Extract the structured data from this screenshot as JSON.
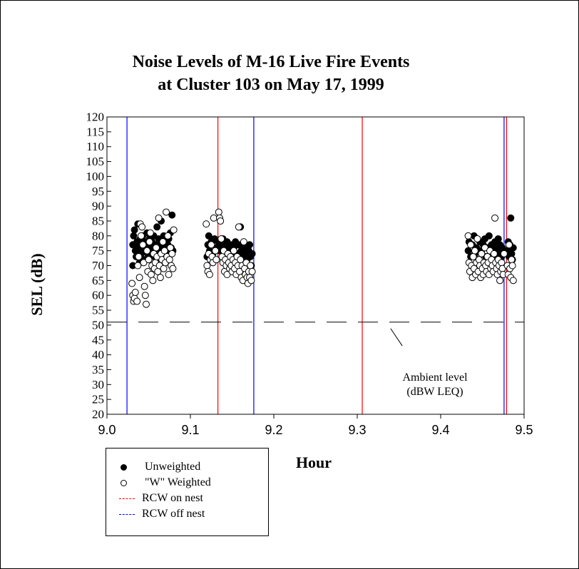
{
  "chart_data": {
    "type": "scatter",
    "title_lines": [
      "Noise Levels of M-16 Live Fire Events",
      "at Cluster 103 on May 17, 1999"
    ],
    "xlabel": "Hour",
    "ylabel": "SEL (dB)",
    "xlim": [
      9.0,
      9.5
    ],
    "ylim": [
      20,
      120
    ],
    "x_ticks": [
      "9.0",
      "9.1",
      "9.2",
      "9.3",
      "9.4",
      "9.5"
    ],
    "y_ticks": [
      "20",
      "25",
      "30",
      "35",
      "40",
      "45",
      "50",
      "55",
      "60",
      "65",
      "70",
      "75",
      "80",
      "85",
      "90",
      "95",
      "100",
      "105",
      "110",
      "115",
      "120"
    ],
    "grid": false,
    "legend_position": "bottom-left",
    "ambient_level": {
      "y": 51,
      "annotation_lines": [
        "Ambient level",
        "(dBW LEQ)"
      ]
    },
    "vertical_lines": [
      {
        "series": "RCW off nest",
        "x": 9.024
      },
      {
        "series": "RCW on nest",
        "x": 9.133
      },
      {
        "series": "RCW off nest",
        "x": 9.176
      },
      {
        "series": "RCW on nest",
        "x": 9.306
      },
      {
        "series": "RCW off nest",
        "x": 9.476
      },
      {
        "series": "RCW on nest",
        "x": 9.479
      }
    ],
    "series": [
      {
        "name": "Unweighted",
        "marker": "filled-circle",
        "points": [
          [
            9.031,
            70
          ],
          [
            9.031,
            77
          ],
          [
            9.032,
            80
          ],
          [
            9.033,
            82
          ],
          [
            9.034,
            75
          ],
          [
            9.035,
            73
          ],
          [
            9.036,
            78
          ],
          [
            9.037,
            84
          ],
          [
            9.038,
            76
          ],
          [
            9.039,
            71
          ],
          [
            9.04,
            79
          ],
          [
            9.041,
            74
          ],
          [
            9.042,
            77
          ],
          [
            9.043,
            80
          ],
          [
            9.044,
            75
          ],
          [
            9.045,
            72
          ],
          [
            9.046,
            78
          ],
          [
            9.047,
            76
          ],
          [
            9.048,
            81
          ],
          [
            9.049,
            74
          ],
          [
            9.05,
            77
          ],
          [
            9.051,
            79
          ],
          [
            9.052,
            73
          ],
          [
            9.053,
            76
          ],
          [
            9.054,
            78
          ],
          [
            9.055,
            75
          ],
          [
            9.056,
            80
          ],
          [
            9.057,
            74
          ],
          [
            9.058,
            77
          ],
          [
            9.059,
            72
          ],
          [
            9.06,
            83
          ],
          [
            9.061,
            76
          ],
          [
            9.062,
            79
          ],
          [
            9.063,
            75
          ],
          [
            9.064,
            78
          ],
          [
            9.065,
            85
          ],
          [
            9.066,
            74
          ],
          [
            9.067,
            77
          ],
          [
            9.068,
            80
          ],
          [
            9.069,
            76
          ],
          [
            9.07,
            73
          ],
          [
            9.071,
            78
          ],
          [
            9.072,
            75
          ],
          [
            9.073,
            77
          ],
          [
            9.074,
            79
          ],
          [
            9.075,
            74
          ],
          [
            9.076,
            81
          ],
          [
            9.077,
            76
          ],
          [
            9.078,
            87
          ],
          [
            9.079,
            75
          ],
          [
            9.12,
            73
          ],
          [
            9.121,
            77
          ],
          [
            9.122,
            80
          ],
          [
            9.123,
            75
          ],
          [
            9.125,
            78
          ],
          [
            9.127,
            74
          ],
          [
            9.129,
            79
          ],
          [
            9.131,
            76
          ],
          [
            9.133,
            78
          ],
          [
            9.135,
            75
          ],
          [
            9.137,
            77
          ],
          [
            9.139,
            79
          ],
          [
            9.14,
            74
          ],
          [
            9.142,
            76
          ],
          [
            9.144,
            78
          ],
          [
            9.146,
            75
          ],
          [
            9.148,
            77
          ],
          [
            9.15,
            73
          ],
          [
            9.152,
            76
          ],
          [
            9.154,
            78
          ],
          [
            9.156,
            74
          ],
          [
            9.158,
            77
          ],
          [
            9.16,
            83
          ],
          [
            9.161,
            75
          ],
          [
            9.162,
            73
          ],
          [
            9.164,
            77
          ],
          [
            9.165,
            76
          ],
          [
            9.167,
            74
          ],
          [
            9.168,
            72
          ],
          [
            9.17,
            75
          ],
          [
            9.171,
            77
          ],
          [
            9.172,
            73
          ],
          [
            9.173,
            70
          ],
          [
            9.174,
            74
          ],
          [
            9.433,
            75
          ],
          [
            9.434,
            78
          ],
          [
            9.436,
            73
          ],
          [
            9.438,
            77
          ],
          [
            9.44,
            80
          ],
          [
            9.441,
            74
          ],
          [
            9.443,
            76
          ],
          [
            9.445,
            72
          ],
          [
            9.447,
            78
          ],
          [
            9.449,
            75
          ],
          [
            9.451,
            77
          ],
          [
            9.453,
            79
          ],
          [
            9.454,
            73
          ],
          [
            9.456,
            76
          ],
          [
            9.458,
            80
          ],
          [
            9.46,
            74
          ],
          [
            9.461,
            77
          ],
          [
            9.463,
            75
          ],
          [
            9.465,
            78
          ],
          [
            9.466,
            72
          ],
          [
            9.468,
            76
          ],
          [
            9.469,
            79
          ],
          [
            9.47,
            74
          ],
          [
            9.471,
            77
          ],
          [
            9.472,
            75
          ],
          [
            9.473,
            73
          ],
          [
            9.474,
            76
          ],
          [
            9.475,
            70
          ],
          [
            9.48,
            75
          ],
          [
            9.481,
            78
          ],
          [
            9.482,
            73
          ],
          [
            9.483,
            77
          ],
          [
            9.484,
            86
          ],
          [
            9.485,
            74
          ],
          [
            9.486,
            72
          ],
          [
            9.487,
            76
          ]
        ]
      },
      {
        "name": "\"W\" Weighted",
        "marker": "open-circle",
        "points": [
          [
            9.03,
            64
          ],
          [
            9.031,
            60
          ],
          [
            9.032,
            58
          ],
          [
            9.033,
            59
          ],
          [
            9.034,
            61
          ],
          [
            9.036,
            58
          ],
          [
            9.037,
            70
          ],
          [
            9.038,
            73
          ],
          [
            9.039,
            66
          ],
          [
            9.04,
            84
          ],
          [
            9.041,
            80
          ],
          [
            9.042,
            83
          ],
          [
            9.043,
            77
          ],
          [
            9.044,
            71
          ],
          [
            9.045,
            63
          ],
          [
            9.046,
            60
          ],
          [
            9.047,
            57
          ],
          [
            9.048,
            75
          ],
          [
            9.049,
            68
          ],
          [
            9.05,
            72
          ],
          [
            9.051,
            78
          ],
          [
            9.052,
            81
          ],
          [
            9.053,
            67
          ],
          [
            9.054,
            70
          ],
          [
            9.055,
            65
          ],
          [
            9.056,
            74
          ],
          [
            9.057,
            69
          ],
          [
            9.058,
            71
          ],
          [
            9.059,
            76
          ],
          [
            9.06,
            73
          ],
          [
            9.061,
            68
          ],
          [
            9.062,
            86
          ],
          [
            9.063,
            70
          ],
          [
            9.064,
            66
          ],
          [
            9.065,
            74
          ],
          [
            9.066,
            72
          ],
          [
            9.067,
            78
          ],
          [
            9.068,
            69
          ],
          [
            9.069,
            75
          ],
          [
            9.07,
            71
          ],
          [
            9.071,
            88
          ],
          [
            9.072,
            73
          ],
          [
            9.073,
            80
          ],
          [
            9.074,
            67
          ],
          [
            9.075,
            72
          ],
          [
            9.076,
            76
          ],
          [
            9.077,
            70
          ],
          [
            9.078,
            74
          ],
          [
            9.079,
            69
          ],
          [
            9.08,
            82
          ],
          [
            9.119,
            84
          ],
          [
            9.12,
            70
          ],
          [
            9.121,
            68
          ],
          [
            9.122,
            74
          ],
          [
            9.123,
            67
          ],
          [
            9.124,
            72
          ],
          [
            9.125,
            77
          ],
          [
            9.126,
            73
          ],
          [
            9.127,
            71
          ],
          [
            9.128,
            86
          ],
          [
            9.13,
            75
          ],
          [
            9.131,
            72
          ],
          [
            9.134,
            88
          ],
          [
            9.135,
            86
          ],
          [
            9.136,
            85
          ],
          [
            9.137,
            79
          ],
          [
            9.138,
            73
          ],
          [
            9.139,
            71
          ],
          [
            9.14,
            75
          ],
          [
            9.141,
            68
          ],
          [
            9.142,
            72
          ],
          [
            9.143,
            70
          ],
          [
            9.144,
            67
          ],
          [
            9.145,
            74
          ],
          [
            9.146,
            71
          ],
          [
            9.147,
            69
          ],
          [
            9.148,
            73
          ],
          [
            9.149,
            70
          ],
          [
            9.15,
            68
          ],
          [
            9.151,
            72
          ],
          [
            9.152,
            75
          ],
          [
            9.153,
            69
          ],
          [
            9.154,
            71
          ],
          [
            9.155,
            67
          ],
          [
            9.156,
            73
          ],
          [
            9.157,
            70
          ],
          [
            9.158,
            83
          ],
          [
            9.159,
            68
          ],
          [
            9.16,
            72
          ],
          [
            9.161,
            66
          ],
          [
            9.162,
            70
          ],
          [
            9.163,
            65
          ],
          [
            9.164,
            78
          ],
          [
            9.165,
            69
          ],
          [
            9.166,
            67
          ],
          [
            9.167,
            71
          ],
          [
            9.168,
            66
          ],
          [
            9.169,
            64
          ],
          [
            9.17,
            68
          ],
          [
            9.171,
            66
          ],
          [
            9.172,
            70
          ],
          [
            9.173,
            65
          ],
          [
            9.174,
            68
          ],
          [
            9.433,
            80
          ],
          [
            9.434,
            71
          ],
          [
            9.435,
            68
          ],
          [
            9.436,
            77
          ],
          [
            9.437,
            70
          ],
          [
            9.438,
            66
          ],
          [
            9.439,
            73
          ],
          [
            9.44,
            69
          ],
          [
            9.441,
            75
          ],
          [
            9.442,
            67
          ],
          [
            9.443,
            71
          ],
          [
            9.444,
            79
          ],
          [
            9.445,
            68
          ],
          [
            9.446,
            72
          ],
          [
            9.447,
            70
          ],
          [
            9.448,
            66
          ],
          [
            9.449,
            74
          ],
          [
            9.45,
            69
          ],
          [
            9.451,
            67
          ],
          [
            9.452,
            71
          ],
          [
            9.453,
            76
          ],
          [
            9.454,
            70
          ],
          [
            9.455,
            68
          ],
          [
            9.456,
            73
          ],
          [
            9.457,
            71
          ],
          [
            9.458,
            67
          ],
          [
            9.459,
            75
          ],
          [
            9.46,
            69
          ],
          [
            9.461,
            72
          ],
          [
            9.462,
            70
          ],
          [
            9.463,
            68
          ],
          [
            9.464,
            74
          ],
          [
            9.465,
            86
          ],
          [
            9.466,
            71
          ],
          [
            9.467,
            69
          ],
          [
            9.468,
            67
          ],
          [
            9.469,
            72
          ],
          [
            9.47,
            70
          ],
          [
            9.471,
            65
          ],
          [
            9.472,
            68
          ],
          [
            9.473,
            71
          ],
          [
            9.474,
            69
          ],
          [
            9.475,
            67
          ],
          [
            9.476,
            74
          ],
          [
            9.48,
            70
          ],
          [
            9.481,
            67
          ],
          [
            9.482,
            77
          ],
          [
            9.483,
            69
          ],
          [
            9.484,
            66
          ],
          [
            9.485,
            72
          ],
          [
            9.486,
            70
          ],
          [
            9.487,
            65
          ]
        ]
      }
    ],
    "legend": [
      {
        "label": "Unweighted",
        "symbol": "filled-circle"
      },
      {
        "label": "\"W\" Weighted",
        "symbol": "open-circle"
      },
      {
        "label": "RCW on nest",
        "symbol": "dash",
        "color": "#ff0000"
      },
      {
        "label": "RCW off nest",
        "symbol": "dash",
        "color": "#0000ff"
      }
    ],
    "colors": {
      "on_nest": "#ff0000",
      "off_nest": "#0000ff",
      "marker": "#000000"
    }
  }
}
